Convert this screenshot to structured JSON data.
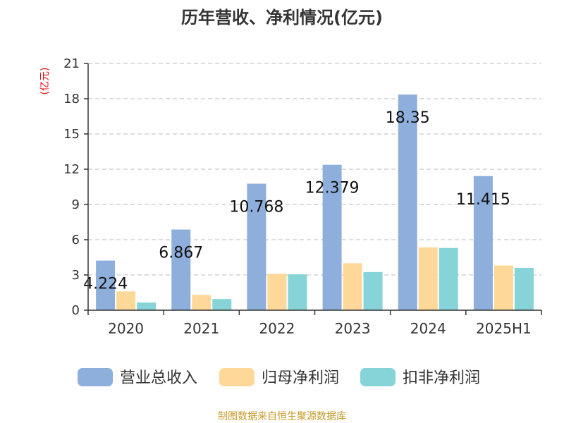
{
  "chart_data": {
    "type": "bar",
    "title": "历年营收、净利情况(亿元)",
    "ylabel": "(亿元)",
    "xlabel": "",
    "categories": [
      "2020",
      "2021",
      "2022",
      "2023",
      "2024",
      "2025H1"
    ],
    "ylim": [
      0,
      21
    ],
    "yticks": [
      0,
      3,
      6,
      9,
      12,
      15,
      18,
      21
    ],
    "grid": true,
    "legend_position": "bottom",
    "series": [
      {
        "name": "营业总收入",
        "color": "#8eaedb",
        "values": [
          4.224,
          6.867,
          10.768,
          12.379,
          18.35,
          11.415
        ],
        "labels": [
          "4.224",
          "6.867",
          "10.768",
          "12.379",
          "18.35",
          "11.415"
        ]
      },
      {
        "name": "归母净利润",
        "color": "#fed899",
        "values": [
          1.6,
          1.3,
          3.1,
          4.0,
          5.35,
          3.8
        ]
      },
      {
        "name": "扣非净利润",
        "color": "#87d4d8",
        "values": [
          0.65,
          0.95,
          3.05,
          3.25,
          5.3,
          3.6
        ]
      }
    ]
  },
  "footer": {
    "source": "制图数据来自恒生聚源数据库"
  }
}
